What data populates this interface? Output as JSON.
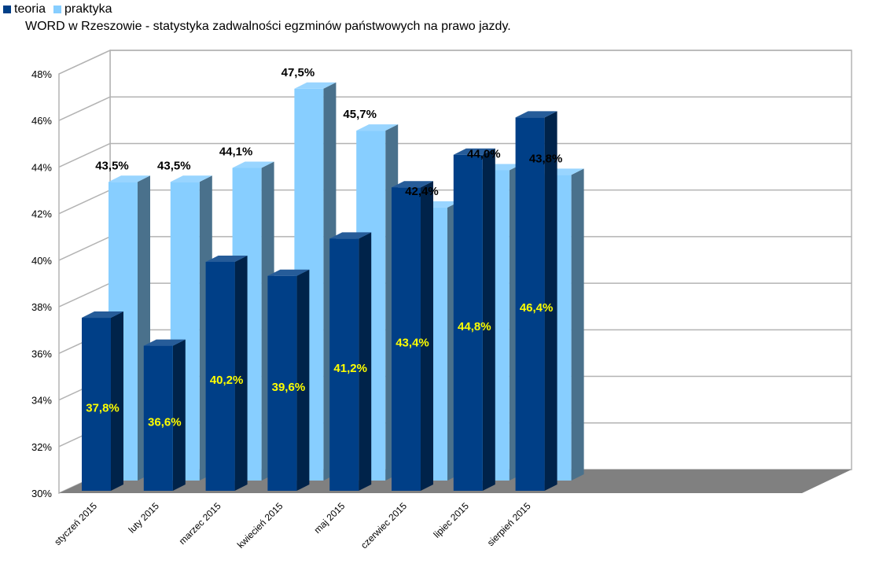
{
  "chart_data": {
    "type": "bar",
    "title": "WORD w Rzeszowie - statystyka zadwalności egzminów państwowych na prawo jazdy.",
    "categories": [
      "styczeń 2015",
      "luty 2015",
      "marzec 2015",
      "kwiecień 2015",
      "maj 2015",
      "czerwiec 2015",
      "lipiec 2015",
      "sierpień 2015"
    ],
    "series": [
      {
        "name": "teoria",
        "color": "#003f87",
        "values": [
          37.8,
          36.6,
          40.2,
          39.6,
          41.2,
          43.4,
          44.8,
          46.4
        ],
        "labels": [
          "37,8%",
          "36,6%",
          "40,2%",
          "39,6%",
          "41,2%",
          "43,4%",
          "44,8%",
          "46,4%"
        ],
        "label_color": "#ffff00"
      },
      {
        "name": "praktyka",
        "color": "#87ceff",
        "values": [
          43.5,
          43.5,
          44.1,
          47.5,
          45.7,
          42.4,
          44.0,
          43.8
        ],
        "labels": [
          "43,5%",
          "43,5%",
          "44,1%",
          "47,5%",
          "45,7%",
          "42,4%",
          "44,0%",
          "43,8%"
        ],
        "label_color": "#000000"
      }
    ],
    "yticks": [
      "30%",
      "32%",
      "34%",
      "36%",
      "38%",
      "40%",
      "42%",
      "44%",
      "46%",
      "48%"
    ],
    "ylim": [
      30,
      48
    ],
    "grid": true,
    "style": "3d",
    "legend": "top-left"
  }
}
